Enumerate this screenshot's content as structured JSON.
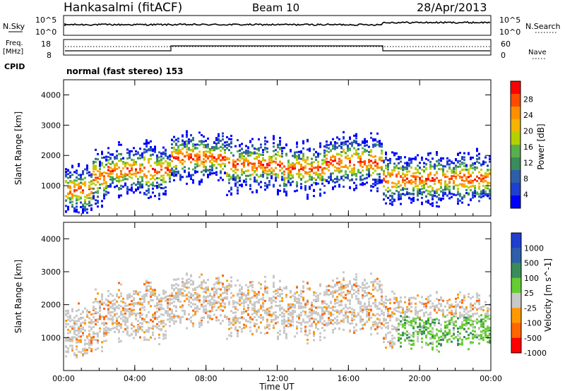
{
  "header": {
    "station": "Hankasalmi (fitACF)",
    "beam": "Beam 10",
    "date": "28/Apr/2013"
  },
  "status_panels": {
    "nsky_label": "N.Sky",
    "nsearch_label": "N.Search",
    "freq_label_1": "Freq.",
    "freq_label_2": "[MHz]",
    "nave_label": "Nave",
    "cpid_label": "CPID",
    "cpid_value": "normal (fast stereo) 153",
    "noise_ticks": [
      "10^5",
      "10^0"
    ],
    "freq_ticks": [
      "18",
      "8"
    ],
    "nave_ticks": [
      "60",
      "0"
    ]
  },
  "chart_data": [
    {
      "type": "heatmap",
      "name": "power",
      "ylabel": "Slant Range [km]",
      "xlabel": "",
      "ylim": [
        0,
        4500
      ],
      "yticks": [
        "1000",
        "2000",
        "3000",
        "4000"
      ],
      "xticks": [
        "00:00",
        "04:00",
        "08:00",
        "12:00",
        "16:00",
        "20:00",
        "00:00"
      ],
      "colorbar": {
        "label": "Power [dB]",
        "ticks": [
          "28",
          "24",
          "20",
          "16",
          "12",
          "8",
          "4"
        ],
        "colors": [
          "#ff0000",
          "#ff4a00",
          "#ff8f00",
          "#f4b400",
          "#b5d000",
          "#58b04c",
          "#3a8c5a",
          "#2f5fa8",
          "#1f3fd0",
          "#0000ff"
        ]
      }
    },
    {
      "type": "heatmap",
      "name": "velocity",
      "ylabel": "Slant Range [km]",
      "xlabel": "Time UT",
      "ylim": [
        0,
        4500
      ],
      "yticks": [
        "1000",
        "2000",
        "3000",
        "4000"
      ],
      "xticks": [
        "00:00",
        "04:00",
        "08:00",
        "12:00",
        "16:00",
        "20:00",
        "00:00"
      ],
      "colorbar": {
        "label": "Velocity [m s^-1]",
        "ticks": [
          "1000",
          "500",
          "100",
          "25",
          "-25",
          "-100",
          "-500",
          "-1000"
        ],
        "colors": [
          "#1f3fd0",
          "#2f5fa8",
          "#3a8c5a",
          "#66cc33",
          "#c8c8c8",
          "#ff9900",
          "#ff6600",
          "#ff0000"
        ]
      }
    }
  ]
}
